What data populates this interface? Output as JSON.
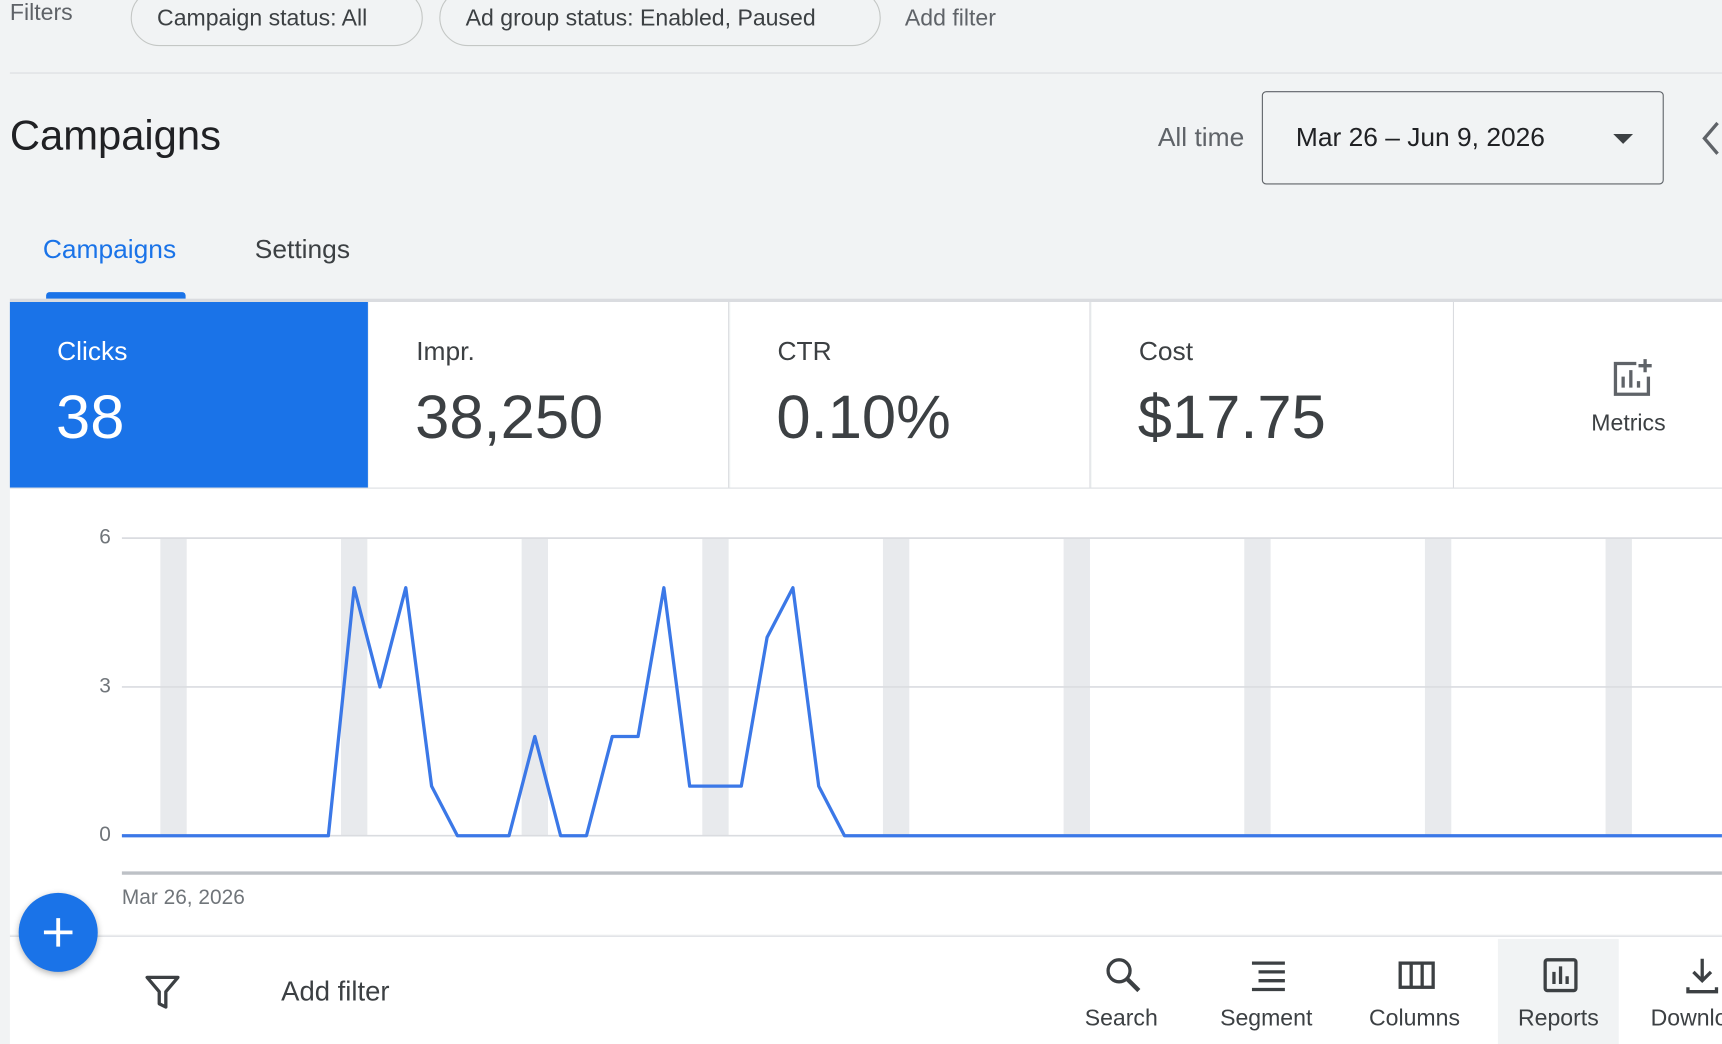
{
  "filters": {
    "label": "Filters",
    "chips": [
      "Campaign status: All",
      "Ad group status: Enabled, Paused"
    ],
    "add": "Add filter"
  },
  "header": {
    "title": "Campaigns",
    "range_label": "All time",
    "date_range": "Mar 26 – Jun 9, 2026"
  },
  "tabs": [
    "Campaigns",
    "Settings"
  ],
  "metrics": [
    {
      "label": "Clicks",
      "value": "38"
    },
    {
      "label": "Impr.",
      "value": "38,250"
    },
    {
      "label": "CTR",
      "value": "0.10%"
    },
    {
      "label": "Cost",
      "value": "$17.75"
    }
  ],
  "metrics_button": "Metrics",
  "chart_data": {
    "type": "line",
    "color": "#3b78e7",
    "grid": true,
    "categories": [
      "Mar 26, 2026",
      null,
      null,
      null,
      null,
      null,
      null,
      null,
      null,
      null,
      null,
      null,
      null,
      null,
      null,
      null,
      null,
      null,
      null,
      null,
      null,
      null,
      null,
      null,
      null,
      null,
      null,
      null,
      null,
      null,
      null,
      null,
      null,
      null,
      null,
      null,
      null,
      null,
      null,
      null,
      null,
      null,
      null,
      null,
      null,
      null,
      null,
      null,
      null,
      null,
      null,
      null,
      null,
      null,
      null,
      null,
      null,
      null,
      null,
      null,
      null,
      null,
      null
    ],
    "values": [
      0,
      0,
      0,
      0,
      0,
      0,
      0,
      0,
      0,
      5,
      3,
      5,
      1,
      0,
      0,
      0,
      2,
      0,
      0,
      2,
      2,
      5,
      1,
      1,
      1,
      4,
      5,
      1,
      0,
      0,
      0,
      0,
      0,
      0,
      0,
      0,
      0,
      0,
      0,
      0,
      0,
      0,
      0,
      0,
      0,
      0,
      0,
      0,
      0,
      0,
      0,
      0,
      0,
      0,
      0,
      0,
      0,
      0,
      0,
      0,
      0,
      0,
      0
    ],
    "ylim": [
      0,
      6
    ],
    "yticks": [
      0,
      3,
      6
    ]
  },
  "toolbar": {
    "add_filter": "Add filter",
    "buttons": [
      "Search",
      "Segment",
      "Columns",
      "Reports",
      "Download"
    ]
  }
}
